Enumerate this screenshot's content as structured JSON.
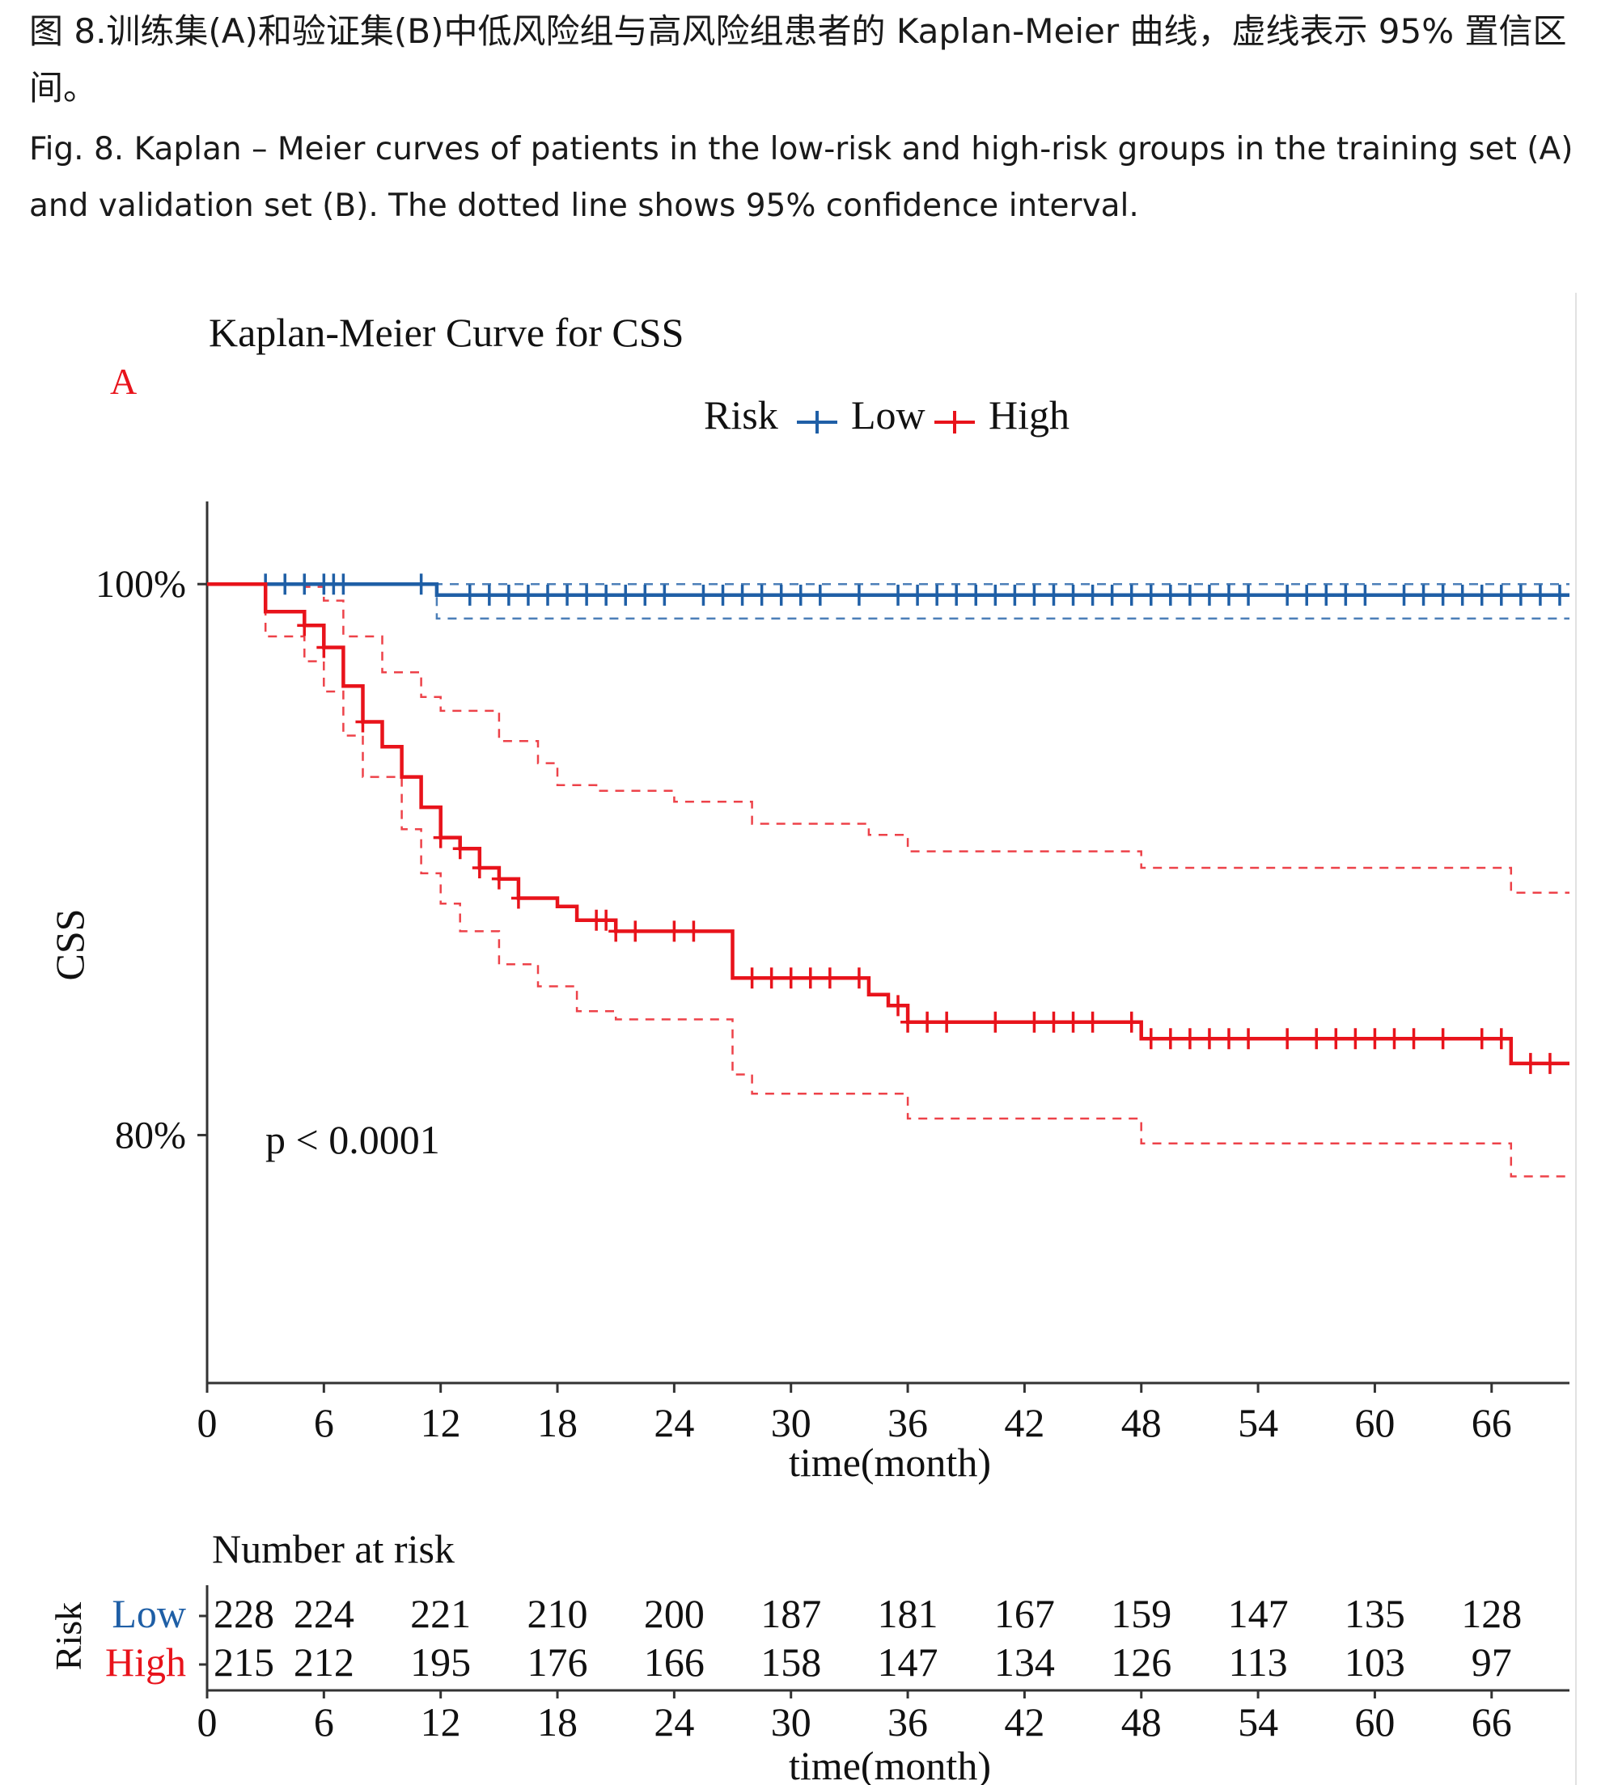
{
  "caption": {
    "zh": "图 8.训练集(A)和验证集(B)中低风险组与高风险组患者的 Kaplan-Meier 曲线，虚线表示 95% 置信区间。",
    "en": "Fig. 8. Kaplan – Meier curves of patients in the low-risk and high-risk groups in the training set (A) and validation set (B). The dotted line shows 95% confidence interval."
  },
  "panel_label": "A",
  "colors": {
    "low": "#1f5fa6",
    "high": "#e8131b",
    "axis": "#333333",
    "text": "#111111",
    "panel_label": "#e8131b"
  },
  "chart_data": {
    "type": "line",
    "title": "Kaplan-Meier Curve for CSS",
    "xlabel": "time(month)",
    "ylabel": "CSS",
    "xlim": [
      0,
      70
    ],
    "ylim": [
      0.71,
      1.03
    ],
    "x_ticks": [
      0,
      6,
      12,
      18,
      24,
      30,
      36,
      42,
      48,
      54,
      60,
      66
    ],
    "y_ticks": [
      {
        "value": 1.0,
        "label": "100%"
      },
      {
        "value": 0.8,
        "label": "80%"
      }
    ],
    "legend": {
      "title": "Risk",
      "entries": [
        "Low",
        "High"
      ],
      "position": "top"
    },
    "annotation": "p < 0.0001",
    "series": [
      {
        "name": "Low",
        "color": "#1f5fa6",
        "steps": [
          [
            0,
            1.0
          ],
          [
            11.8,
            0.996
          ],
          [
            70,
            0.996
          ]
        ],
        "ci_upper": [
          [
            0,
            1.0
          ],
          [
            70,
            1.0
          ]
        ],
        "ci_lower": [
          [
            0,
            1.0
          ],
          [
            11.8,
            0.9875
          ],
          [
            70,
            0.9875
          ]
        ],
        "censor_times": [
          3,
          4,
          5,
          6,
          6.5,
          7,
          11,
          13.5,
          14.5,
          15.5,
          16.5,
          17.5,
          18.5,
          19.5,
          20.5,
          21.5,
          22.5,
          23.5,
          25.5,
          26.5,
          27.5,
          28.5,
          29.5,
          30.5,
          31.5,
          33.5,
          35.5,
          36.5,
          37.5,
          38.5,
          39.5,
          40.5,
          41.5,
          42.5,
          43.5,
          44.5,
          45.5,
          46.5,
          47.5,
          48.5,
          49.5,
          50.5,
          51.5,
          52.5,
          53.5,
          55.5,
          56.5,
          57.5,
          58.5,
          59.5,
          61.5,
          62.5,
          63.5,
          64.5,
          65.5,
          66.5,
          67.5,
          68.5,
          69.5
        ]
      },
      {
        "name": "High",
        "color": "#e8131b",
        "steps": [
          [
            0,
            1.0
          ],
          [
            3,
            0.99
          ],
          [
            5,
            0.985
          ],
          [
            6,
            0.977
          ],
          [
            7,
            0.963
          ],
          [
            8,
            0.95
          ],
          [
            9,
            0.941
          ],
          [
            10,
            0.93
          ],
          [
            11,
            0.919
          ],
          [
            12,
            0.908
          ],
          [
            13,
            0.904
          ],
          [
            14,
            0.897
          ],
          [
            15,
            0.893
          ],
          [
            16,
            0.886
          ],
          [
            18,
            0.883
          ],
          [
            19,
            0.878
          ],
          [
            21,
            0.874
          ],
          [
            27,
            0.857
          ],
          [
            34,
            0.851
          ],
          [
            35,
            0.847
          ],
          [
            36,
            0.841
          ],
          [
            48,
            0.835
          ],
          [
            67,
            0.826
          ],
          [
            70,
            0.826
          ]
        ],
        "ci_upper": [
          [
            0,
            1.0
          ],
          [
            3,
            1.0
          ],
          [
            5,
            0.999
          ],
          [
            6,
            0.994
          ],
          [
            7,
            0.981
          ],
          [
            9,
            0.968
          ],
          [
            11,
            0.959
          ],
          [
            12,
            0.954
          ],
          [
            15,
            0.943
          ],
          [
            17,
            0.935
          ],
          [
            18,
            0.927
          ],
          [
            20,
            0.925
          ],
          [
            24,
            0.921
          ],
          [
            28,
            0.913
          ],
          [
            34,
            0.909
          ],
          [
            36,
            0.903
          ],
          [
            48,
            0.897
          ],
          [
            67,
            0.888
          ],
          [
            70,
            0.888
          ]
        ],
        "ci_lower": [
          [
            0,
            1.0
          ],
          [
            3,
            0.981
          ],
          [
            5,
            0.972
          ],
          [
            6,
            0.961
          ],
          [
            7,
            0.945
          ],
          [
            8,
            0.93
          ],
          [
            10,
            0.911
          ],
          [
            11,
            0.895
          ],
          [
            12,
            0.884
          ],
          [
            13,
            0.874
          ],
          [
            15,
            0.862
          ],
          [
            17,
            0.854
          ],
          [
            19,
            0.845
          ],
          [
            21,
            0.842
          ],
          [
            27,
            0.822
          ],
          [
            28,
            0.815
          ],
          [
            36,
            0.806
          ],
          [
            48,
            0.797
          ],
          [
            67,
            0.785
          ],
          [
            70,
            0.785
          ]
        ],
        "censor_times": [
          5,
          6,
          8,
          12,
          13,
          14,
          15,
          16,
          20,
          20.5,
          21,
          22,
          24,
          25,
          28,
          29,
          30,
          31,
          32,
          33.5,
          35.5,
          36,
          37,
          38,
          40.5,
          42.5,
          43.5,
          44.5,
          45.5,
          47.5,
          48.5,
          49.5,
          50.5,
          51.5,
          52.5,
          53.5,
          55.5,
          57,
          58,
          59,
          60,
          61,
          62,
          63.5,
          65.5,
          66.5,
          68,
          69
        ]
      }
    ],
    "risk_table": {
      "title": "Number at risk",
      "ylabel": "Risk",
      "xlabel": "time(month)",
      "times": [
        0,
        6,
        12,
        18,
        24,
        30,
        36,
        42,
        48,
        54,
        60,
        66
      ],
      "rows": [
        {
          "name": "Low",
          "values": [
            228,
            224,
            221,
            210,
            200,
            187,
            181,
            167,
            159,
            147,
            135,
            128
          ]
        },
        {
          "name": "High",
          "values": [
            215,
            212,
            195,
            176,
            166,
            158,
            147,
            134,
            126,
            113,
            103,
            97
          ]
        }
      ]
    }
  }
}
